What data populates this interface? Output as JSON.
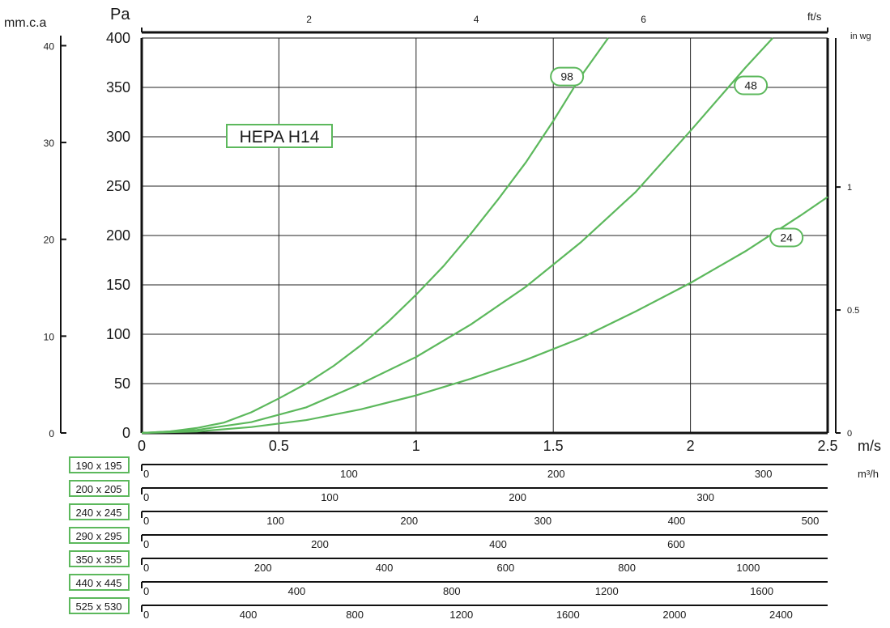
{
  "chart_data": {
    "type": "line",
    "title_badge": "HEPA H14",
    "left_unit_label": "mm.c.a",
    "ylabel": "Pa",
    "xlabel": "m/s",
    "top_unit_label": "ft/s",
    "right_unit_label": "in wg",
    "flow_unit_label": "m³/h",
    "xlim": [
      0,
      2.5
    ],
    "ylim": [
      0,
      400
    ],
    "grid": true,
    "x_ticks": [
      "0",
      "0.5",
      "1",
      "1.5",
      "2",
      "2.5"
    ],
    "y_ticks": [
      "0",
      "50",
      "100",
      "150",
      "200",
      "250",
      "300",
      "350",
      "400"
    ],
    "mmca_ticks": [
      "0",
      "10",
      "20",
      "30",
      "40"
    ],
    "inwg_ticks": [
      "0",
      "0.5",
      "1"
    ],
    "fts_ticks": [
      "2",
      "4",
      "6"
    ],
    "series": [
      {
        "name": "98",
        "color": "#5cb85c",
        "x": [
          0,
          0.1,
          0.2,
          0.3,
          0.4,
          0.5,
          0.6,
          0.7,
          0.8,
          0.9,
          1.0,
          1.1,
          1.2,
          1.3,
          1.4,
          1.5,
          1.6,
          1.7
        ],
        "y": [
          0,
          1.5,
          5,
          10.5,
          21,
          35,
          50,
          68,
          89,
          113,
          140,
          169,
          202,
          237,
          274,
          316,
          361,
          401
        ]
      },
      {
        "name": "48",
        "color": "#5cb85c",
        "x": [
          0,
          0.2,
          0.4,
          0.6,
          0.8,
          1.0,
          1.2,
          1.4,
          1.6,
          1.8,
          2.0,
          2.2,
          2.3
        ],
        "y": [
          0,
          3,
          11,
          26,
          50,
          77,
          110,
          148,
          193,
          244,
          306,
          370,
          400
        ]
      },
      {
        "name": "24",
        "color": "#5cb85c",
        "x": [
          0,
          0.2,
          0.4,
          0.6,
          0.8,
          1.0,
          1.2,
          1.4,
          1.6,
          1.8,
          2.0,
          2.2,
          2.4,
          2.5
        ],
        "y": [
          0,
          1.5,
          6,
          13,
          24,
          38,
          55,
          74,
          96,
          123,
          152,
          184,
          220,
          239
        ]
      }
    ],
    "flow_scales": [
      {
        "size": "190 x 195",
        "ticks": [
          "0",
          "100",
          "200",
          "300"
        ],
        "values": [
          0,
          100,
          200,
          300
        ],
        "max": 331
      },
      {
        "size": "200 x 205",
        "ticks": [
          "0",
          "100",
          "200",
          "300"
        ],
        "values": [
          0,
          100,
          200,
          300
        ],
        "max": 365
      },
      {
        "size": "240 x 245",
        "ticks": [
          "0",
          "100",
          "200",
          "300",
          "400",
          "500"
        ],
        "values": [
          0,
          100,
          200,
          300,
          400,
          500
        ],
        "max": 513
      },
      {
        "size": "290 x 295",
        "ticks": [
          "0",
          "200",
          "400",
          "600"
        ],
        "values": [
          0,
          200,
          400,
          600
        ],
        "max": 770
      },
      {
        "size": "350 x 355",
        "ticks": [
          "0",
          "200",
          "400",
          "600",
          "800",
          "1000"
        ],
        "values": [
          0,
          200,
          400,
          600,
          800,
          1000
        ],
        "max": 1131
      },
      {
        "size": "440 x 445",
        "ticks": [
          "0",
          "400",
          "800",
          "1200",
          "1600"
        ],
        "values": [
          0,
          400,
          800,
          1200,
          1600
        ],
        "max": 1770
      },
      {
        "size": "525 x 530",
        "ticks": [
          "0",
          "400",
          "800",
          "1200",
          "1600",
          "2000",
          "2400"
        ],
        "values": [
          0,
          400,
          800,
          1200,
          1600,
          2000,
          2400
        ],
        "max": 2575
      }
    ]
  }
}
